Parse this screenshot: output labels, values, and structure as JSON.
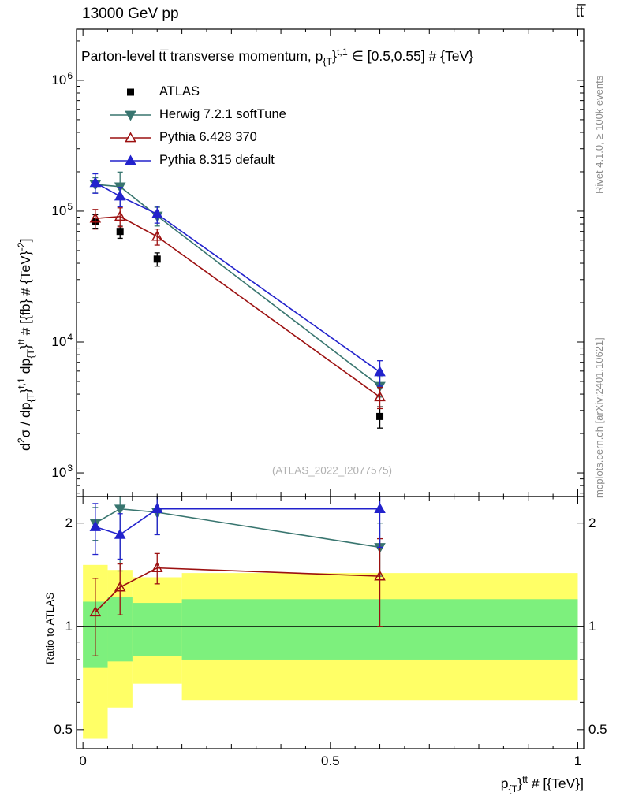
{
  "header": {
    "left": "13000 GeV pp",
    "right": "tt̅"
  },
  "side_notes": {
    "top": "Rivet 4.1.0, ≥ 100k events",
    "bottom": "mcplots.cern.ch [arXiv:2401.10621]"
  },
  "watermark": "(ATLAS_2022_I2077575)",
  "ratio": {
    "ylabel": "Ratio to ATLAS"
  },
  "chart_data": {
    "type": "line",
    "title_text": "Parton-level tt̅ transverse momentum, p_{T}^{t,1} ∈ [0.5,0.55] # {TeV}",
    "title_parts": [
      {
        "t": "Parton-level tt̅ transverse momentum, p",
        "s": "n"
      },
      {
        "t": "{T",
        "s": "sub"
      },
      {
        "t": "}",
        "s": "n"
      },
      {
        "t": "t,1",
        "s": "sup"
      },
      {
        "t": " ∈ [0.5,0.55] # {TeV}",
        "s": "n"
      }
    ],
    "ylabel_text": "d²σ / dp_{T}^{t,1} dp_{T}^{tt̅} # [{fb} # {TeV}^{-2}]",
    "ylabel_parts": [
      {
        "t": "d",
        "s": "n"
      },
      {
        "t": "2",
        "s": "sup"
      },
      {
        "t": "σ / dp",
        "s": "n"
      },
      {
        "t": "{T",
        "s": "sub"
      },
      {
        "t": "}",
        "s": "n"
      },
      {
        "t": "t,1",
        "s": "sup"
      },
      {
        "t": " dp",
        "s": "n"
      },
      {
        "t": "{T",
        "s": "sub"
      },
      {
        "t": "}",
        "s": "n"
      },
      {
        "t": "tt̅",
        "s": "sup"
      },
      {
        "t": " # [{fb} # {TeV}",
        "s": "n"
      },
      {
        "t": "-2",
        "s": "sup"
      },
      {
        "t": "]",
        "s": "n"
      }
    ],
    "xlabel_text": "p_{T}^{tt̅} # [{TeV}]",
    "xlabel_parts": [
      {
        "t": "p",
        "s": "n"
      },
      {
        "t": "{T",
        "s": "sub"
      },
      {
        "t": "}",
        "s": "n"
      },
      {
        "t": "tt̅",
        "s": "sup"
      },
      {
        "t": " # [{TeV}]",
        "s": "n"
      }
    ],
    "x_points": [
      0.025,
      0.075,
      0.15,
      0.6
    ],
    "series": [
      {
        "name": "ATLAS",
        "color": "#000000",
        "marker": "square",
        "fill": "filled",
        "line": false,
        "values": [
          84000,
          70000,
          43000,
          2700
        ],
        "errors": [
          10000,
          8000,
          5000,
          500
        ],
        "ratio": null,
        "ratio_errors": null
      },
      {
        "name": "Herwig 7.2.1 softTune",
        "color": "#38756f",
        "marker": "triangle-down",
        "fill": "filled",
        "line": true,
        "values": [
          160000,
          154000,
          92000,
          4600
        ],
        "errors": [
          20000,
          45000,
          15000,
          800
        ],
        "ratio": [
          2.0,
          2.2,
          2.15,
          1.7
        ],
        "ratio_errors": [
          0.22,
          0.75,
          0.3,
          0.3
        ]
      },
      {
        "name": "Pythia 6.428 370",
        "color": "#9c1010",
        "marker": "triangle-up",
        "fill": "open",
        "line": true,
        "values": [
          88000,
          91000,
          64000,
          3800
        ],
        "errors": [
          15000,
          15000,
          9000,
          700
        ],
        "ratio": [
          1.1,
          1.3,
          1.48,
          1.4
        ],
        "ratio_errors": [
          0.28,
          0.22,
          0.15,
          0.4
        ]
      },
      {
        "name": "Pythia 8.315 default",
        "color": "#2222cc",
        "marker": "triangle-up",
        "fill": "filled",
        "line": true,
        "values": [
          165000,
          130000,
          95000,
          5900
        ],
        "errors": [
          28000,
          22000,
          14000,
          1300
        ],
        "ratio": [
          1.95,
          1.85,
          2.2,
          2.2
        ],
        "ratio_errors": [
          0.33,
          0.28,
          0.35,
          0.5
        ]
      }
    ],
    "x_axis": {
      "min": -0.013,
      "max": 1.012,
      "major_ticks": [
        0,
        0.5,
        1
      ],
      "major_labels": [
        "0",
        "0.5",
        "1"
      ],
      "minor_step": 0.05
    },
    "y_axis_main": {
      "scale": "log",
      "min": 660,
      "max": 2460000,
      "decade_exponents": [
        3,
        4,
        5,
        6
      ]
    },
    "y_axis_ratio": {
      "scale": "log",
      "min": 0.44,
      "max": 2.39,
      "labeled_ticks": [
        0.5,
        1,
        2
      ],
      "tick_labels": [
        "0.5",
        "1",
        "2"
      ],
      "minor_ticks": [
        0.6,
        0.7,
        0.8,
        0.9
      ],
      "reference_line": 1
    },
    "bands": {
      "bins": [
        [
          0,
          0.05
        ],
        [
          0.05,
          0.1
        ],
        [
          0.1,
          0.2
        ],
        [
          0.2,
          1.0
        ]
      ],
      "yellow": [
        [
          0.47,
          1.51
        ],
        [
          0.58,
          1.46
        ],
        [
          0.68,
          1.39
        ],
        [
          0.61,
          1.43
        ]
      ],
      "green": [
        [
          0.76,
          1.18
        ],
        [
          0.79,
          1.22
        ],
        [
          0.82,
          1.17
        ],
        [
          0.8,
          1.2
        ]
      ],
      "yellow_color": "#ffff66",
      "green_color": "#7df07d"
    }
  }
}
